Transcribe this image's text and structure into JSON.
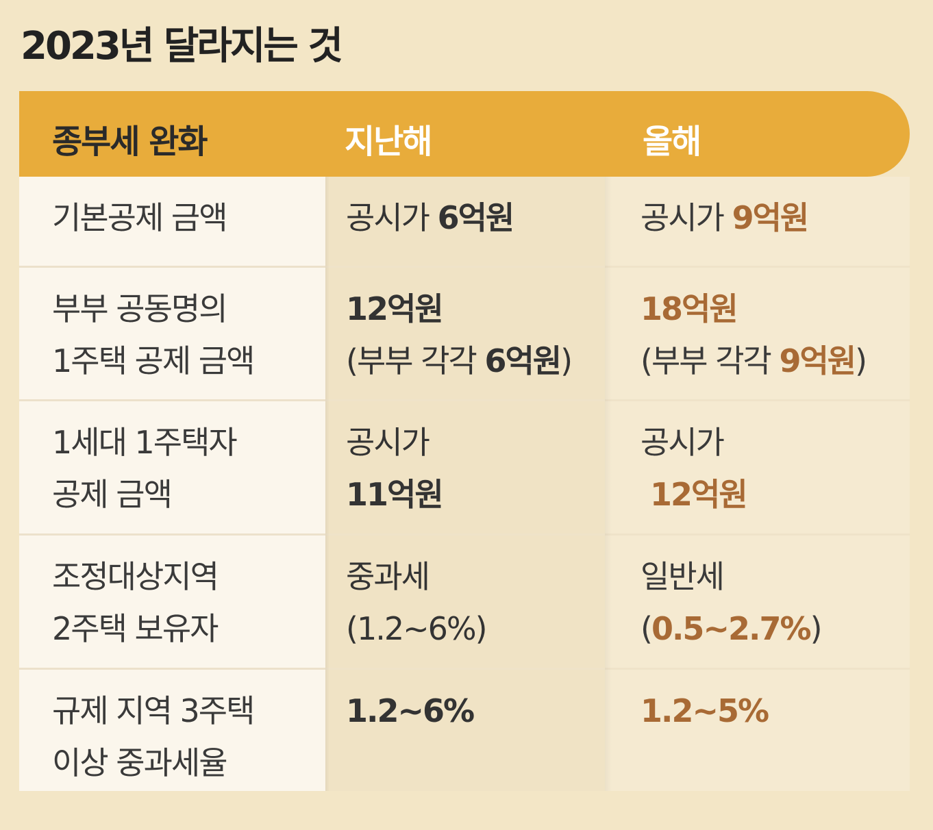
{
  "title": "2023년 달라지는 것",
  "colors": {
    "header": "#e8ac3b",
    "highlight": "#a86a35",
    "background": "#f3e6c6"
  },
  "chart_data": {
    "type": "table",
    "title": "2023년 달라지는 것",
    "columns": [
      "종부세 완화",
      "지난해",
      "올해"
    ],
    "rows": [
      {
        "item": [
          "기본공제 금액"
        ],
        "last_year": [
          {
            "pre": "공시가 ",
            "bold": "6억원"
          }
        ],
        "this_year": [
          {
            "pre": "공시가 ",
            "hl": "9억원"
          }
        ]
      },
      {
        "item": [
          "부부 공동명의",
          "1주택 공제 금액"
        ],
        "last_year": [
          {
            "bold": "12억원"
          },
          {
            "pre": "(부부 각각 ",
            "bold": "6억원",
            "post": ")"
          }
        ],
        "this_year": [
          {
            "hl": "18억원"
          },
          {
            "pre": "(부부 각각 ",
            "hl": "9억원",
            "post": ")"
          }
        ]
      },
      {
        "item": [
          "1세대 1주택자",
          "공제 금액"
        ],
        "last_year": [
          {
            "pre": "공시가"
          },
          {
            "bold": "11억원"
          }
        ],
        "this_year": [
          {
            "pre": "공시가"
          },
          {
            "hl": "12억원"
          }
        ]
      },
      {
        "item": [
          "조정대상지역",
          "2주택 보유자"
        ],
        "last_year": [
          {
            "pre": "중과세"
          },
          {
            "pre": "(1.2~6%)"
          }
        ],
        "this_year": [
          {
            "pre": "일반세"
          },
          {
            "pre": "(",
            "hl": "0.5~2.7%",
            "post": ")"
          }
        ]
      },
      {
        "item": [
          "규제 지역 3주택",
          "이상 중과세율"
        ],
        "last_year": [
          {
            "bold": "1.2~6%"
          }
        ],
        "this_year": [
          {
            "hl": "1.2~5%"
          }
        ]
      }
    ]
  }
}
